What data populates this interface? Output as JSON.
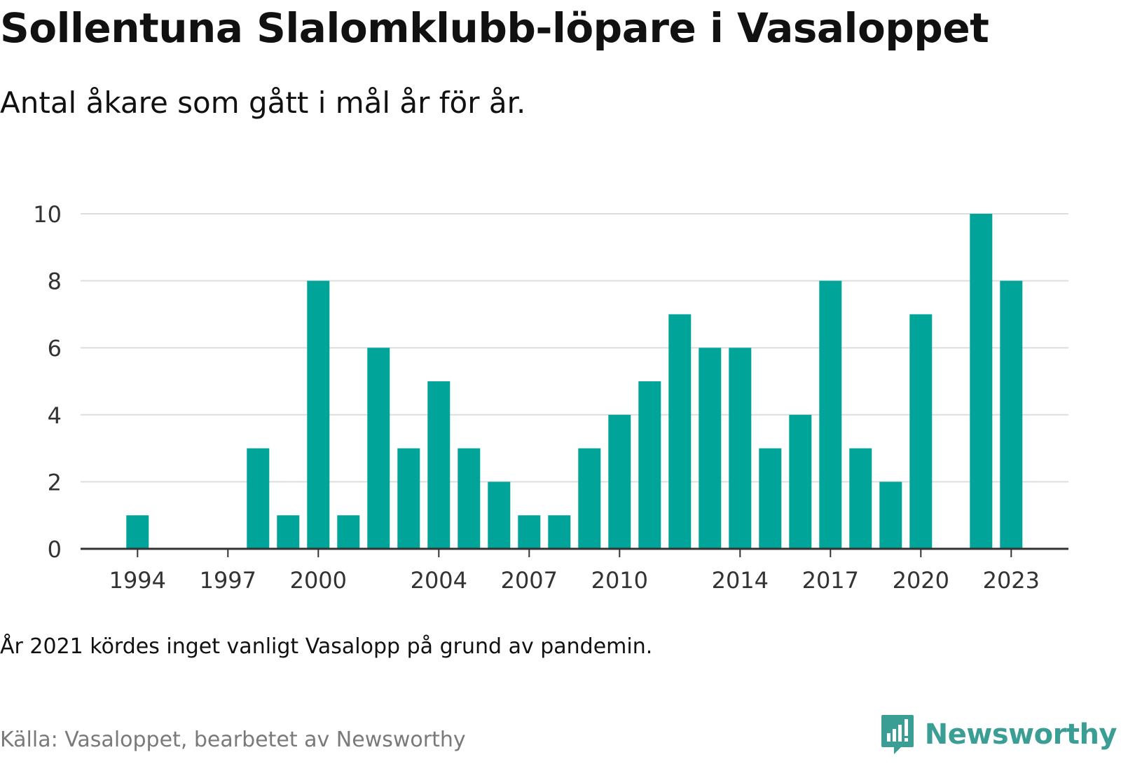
{
  "header": {
    "title": "Sollentuna Slalomklubb-löpare i Vasaloppet",
    "subtitle": "Antal åkare som gått i mål år för år."
  },
  "footer": {
    "note": "År 2021 kördes inget vanligt Vasalopp på grund av pandemin.",
    "source": "Källa: Vasaloppet, bearbetet av Newsworthy",
    "brand": "Newsworthy",
    "brand_icon": "newsworthy-logo-icon"
  },
  "colors": {
    "bar": "#00a499",
    "grid": "#dddddd",
    "axis": "#333333",
    "brand": "#3b9e95"
  },
  "chart_data": {
    "type": "bar",
    "title": "Sollentuna Slalomklubb-löpare i Vasaloppet",
    "subtitle": "Antal åkare som gått i mål år för år.",
    "xlabel": "",
    "ylabel": "",
    "x": [
      1993,
      1994,
      1995,
      1996,
      1997,
      1998,
      1999,
      2000,
      2001,
      2002,
      2003,
      2004,
      2005,
      2006,
      2007,
      2008,
      2009,
      2010,
      2011,
      2012,
      2013,
      2014,
      2015,
      2016,
      2017,
      2018,
      2019,
      2020,
      2021,
      2022,
      2023
    ],
    "values": [
      0,
      1,
      0,
      0,
      0,
      3,
      1,
      8,
      1,
      6,
      3,
      5,
      3,
      2,
      1,
      1,
      3,
      4,
      5,
      7,
      6,
      6,
      3,
      4,
      8,
      3,
      2,
      7,
      0,
      10,
      8
    ],
    "x_ticks": [
      1994,
      1997,
      2000,
      2004,
      2007,
      2010,
      2014,
      2017,
      2020,
      2023
    ],
    "y_ticks": [
      0,
      2,
      4,
      6,
      8,
      10
    ],
    "ylim": [
      0,
      10
    ],
    "grid": true,
    "legend": "none"
  }
}
